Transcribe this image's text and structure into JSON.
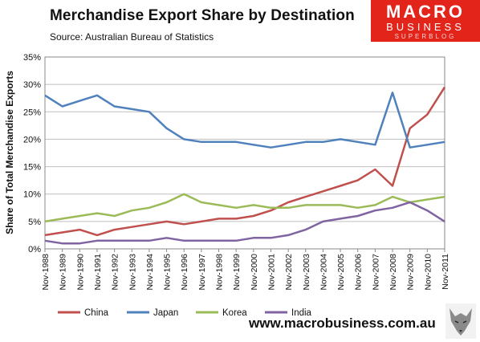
{
  "header": {
    "title": "Merchandise Export Share by Destination",
    "subtitle": "Source:  Australian Bureau of Statistics"
  },
  "logo": {
    "line1": "MACRO",
    "line2": "BUSINESS",
    "line3": "SUPERBLOG"
  },
  "footer": {
    "website": "www.macrobusiness.com.au"
  },
  "chart_data": {
    "type": "line",
    "title": "Merchandise Export Share by Destination",
    "ylabel": "Share of Total Merchandise Exports",
    "xlabel": "",
    "ylim": [
      0,
      35
    ],
    "yticks": [
      "0%",
      "5%",
      "10%",
      "15%",
      "20%",
      "25%",
      "30%",
      "35%"
    ],
    "categories": [
      "Nov-1988",
      "Nov-1989",
      "Nov-1990",
      "Nov-1991",
      "Nov-1992",
      "Nov-1993",
      "Nov-1994",
      "Nov-1995",
      "Nov-1996",
      "Nov-1997",
      "Nov-1998",
      "Nov-1999",
      "Nov-2000",
      "Nov-2001",
      "Nov-2002",
      "Nov-2003",
      "Nov-2004",
      "Nov-2005",
      "Nov-2006",
      "Nov-2007",
      "Nov-2008",
      "Nov-2009",
      "Nov-2010",
      "Nov-2011"
    ],
    "grid": true,
    "legend_position": "bottom",
    "series": [
      {
        "name": "China",
        "color": "#c0504d",
        "values": [
          2.5,
          3.0,
          3.5,
          2.5,
          3.5,
          4.0,
          4.5,
          5.0,
          4.5,
          5.0,
          5.5,
          5.5,
          6.0,
          7.0,
          8.5,
          9.5,
          10.5,
          11.5,
          12.5,
          14.5,
          11.5,
          22.0,
          24.5,
          29.5
        ]
      },
      {
        "name": "Japan",
        "color": "#4f81bd",
        "values": [
          28.0,
          26.0,
          27.0,
          28.0,
          26.0,
          25.5,
          25.0,
          22.0,
          20.0,
          19.5,
          19.5,
          19.5,
          19.0,
          18.5,
          19.0,
          19.5,
          19.5,
          20.0,
          19.5,
          19.0,
          28.5,
          18.5,
          19.0,
          19.5
        ]
      },
      {
        "name": "Korea",
        "color": "#9bbb59",
        "values": [
          5.0,
          5.5,
          6.0,
          6.5,
          6.0,
          7.0,
          7.5,
          8.5,
          10.0,
          8.5,
          8.0,
          7.5,
          8.0,
          7.5,
          7.5,
          8.0,
          8.0,
          8.0,
          7.5,
          8.0,
          9.5,
          8.5,
          9.0,
          9.5
        ]
      },
      {
        "name": "India",
        "color": "#8064a2",
        "values": [
          1.5,
          1.0,
          1.0,
          1.5,
          1.5,
          1.5,
          1.5,
          2.0,
          1.5,
          1.5,
          1.5,
          1.5,
          2.0,
          2.0,
          2.5,
          3.5,
          5.0,
          5.5,
          6.0,
          7.0,
          7.5,
          8.5,
          7.0,
          5.0
        ]
      }
    ]
  }
}
